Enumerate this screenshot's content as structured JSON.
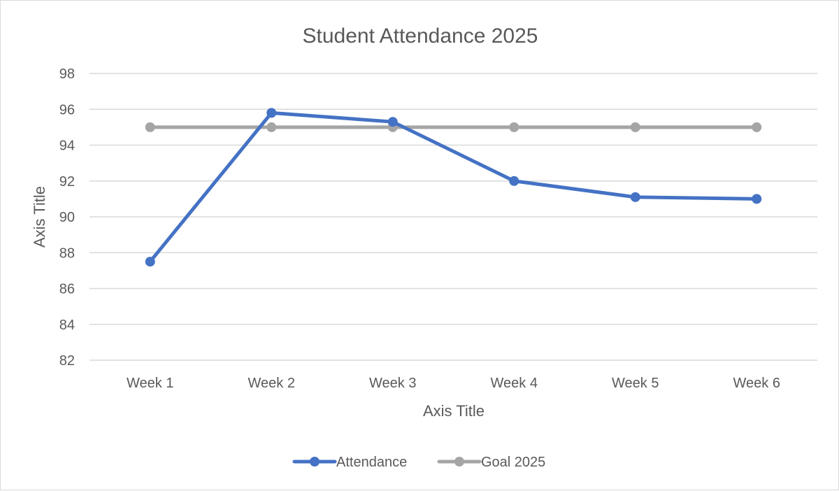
{
  "chart_data": {
    "type": "line",
    "title": "Student Attendance 2025",
    "xlabel": "Axis Title",
    "ylabel": "Axis Title",
    "categories": [
      "Week 1",
      "Week 2",
      "Week 3",
      "Week 4",
      "Week 5",
      "Week 6"
    ],
    "ylim": [
      82,
      98
    ],
    "yticks": [
      82,
      84,
      86,
      88,
      90,
      92,
      94,
      96,
      98
    ],
    "grid": true,
    "legend_position": "bottom",
    "series": [
      {
        "name": "Attendance",
        "color": "#4472c4",
        "values": [
          87.5,
          95.8,
          95.3,
          92.0,
          91.1,
          91.0
        ]
      },
      {
        "name": "Goal 2025",
        "color": "#a5a5a5",
        "values": [
          95,
          95,
          95,
          95,
          95,
          95
        ]
      }
    ]
  }
}
